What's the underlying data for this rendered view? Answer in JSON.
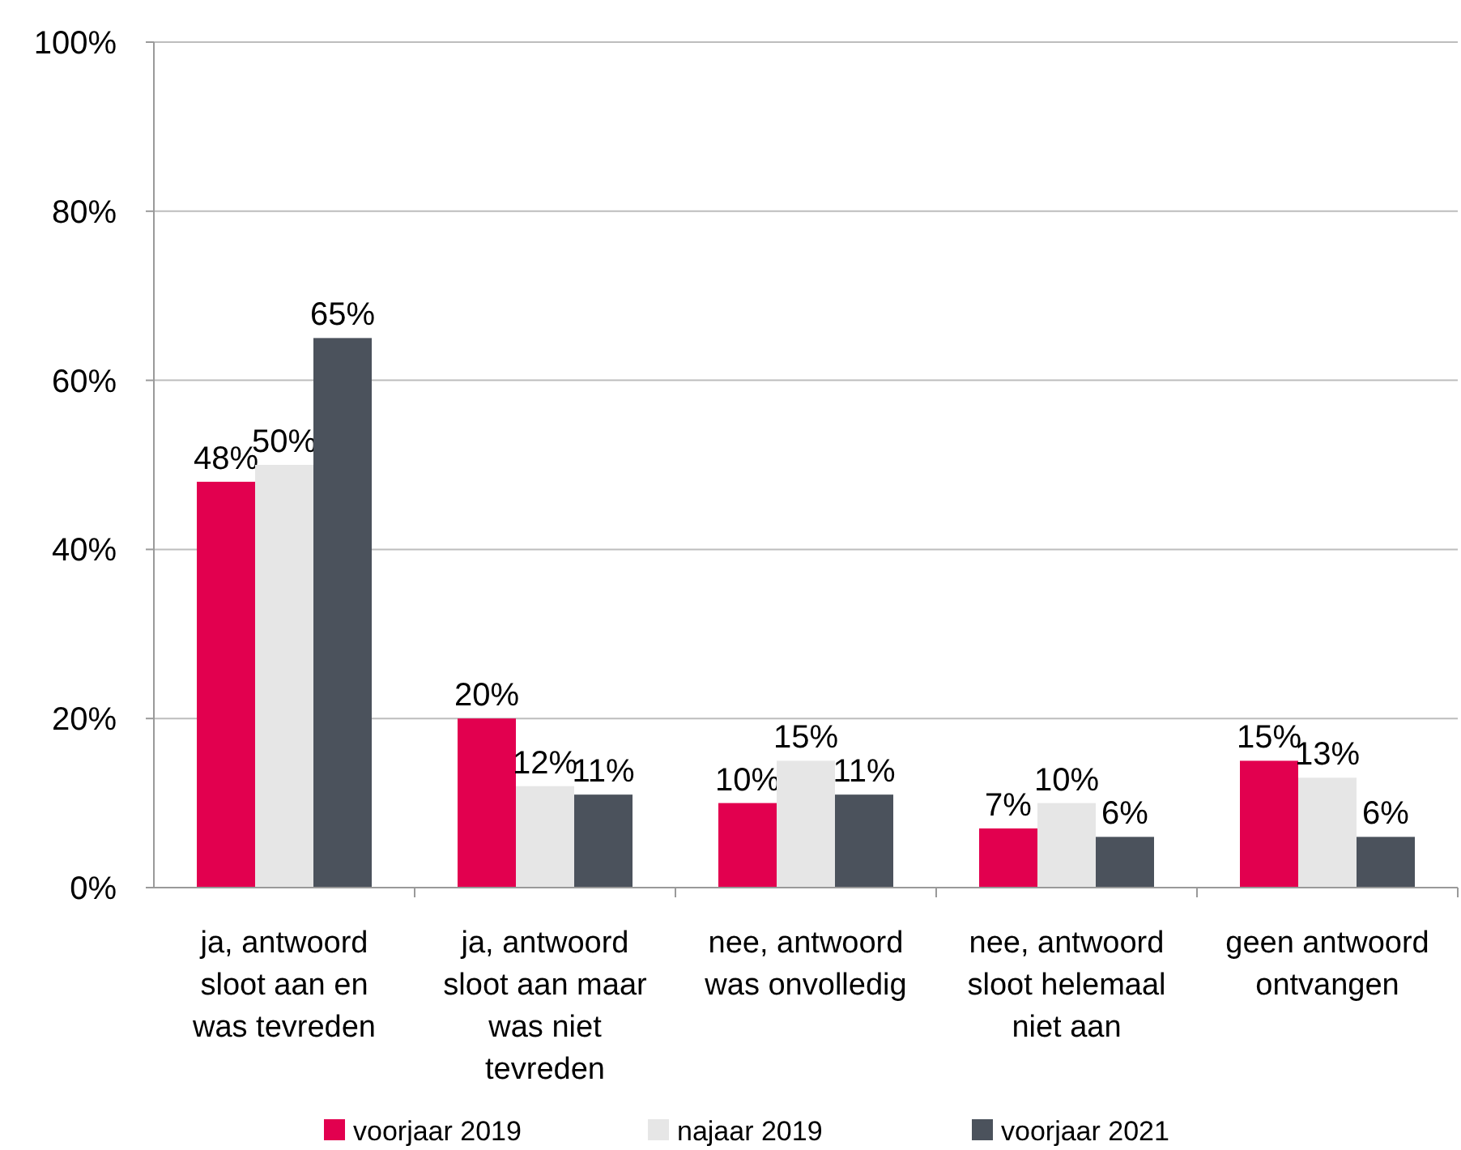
{
  "chart_data": {
    "type": "bar",
    "categories": [
      "ja, antwoord sloot aan en was tevreden",
      "ja, antwoord sloot aan maar was niet tevreden",
      "nee, antwoord was onvolledig",
      "nee, antwoord sloot helemaal niet aan",
      "geen antwoord ontvangen"
    ],
    "series": [
      {
        "name": "voorjaar 2019",
        "color": "#e2004f",
        "values": [
          48,
          20,
          10,
          7,
          15
        ],
        "value_labels": [
          "48%",
          "20%",
          "10%",
          "7%",
          "15%"
        ]
      },
      {
        "name": "najaar 2019",
        "color": "#e6e6e6",
        "values": [
          50,
          12,
          15,
          10,
          13
        ],
        "value_labels": [
          "50%",
          "12%",
          "15%",
          "10%",
          "13%"
        ]
      },
      {
        "name": "voorjaar 2021",
        "color": "#4b525c",
        "values": [
          65,
          11,
          11,
          6,
          6
        ],
        "value_labels": [
          "65%",
          "11%",
          "11%",
          "6%",
          "6%"
        ]
      }
    ],
    "ylim": [
      0,
      100
    ],
    "yticks": [
      {
        "value": 0,
        "label": "0%"
      },
      {
        "value": 20,
        "label": "20%"
      },
      {
        "value": 40,
        "label": "40%"
      },
      {
        "value": 60,
        "label": "60%"
      },
      {
        "value": 80,
        "label": "80%"
      },
      {
        "value": 100,
        "label": "100%"
      }
    ],
    "grid": "y",
    "legend": "bottom"
  }
}
